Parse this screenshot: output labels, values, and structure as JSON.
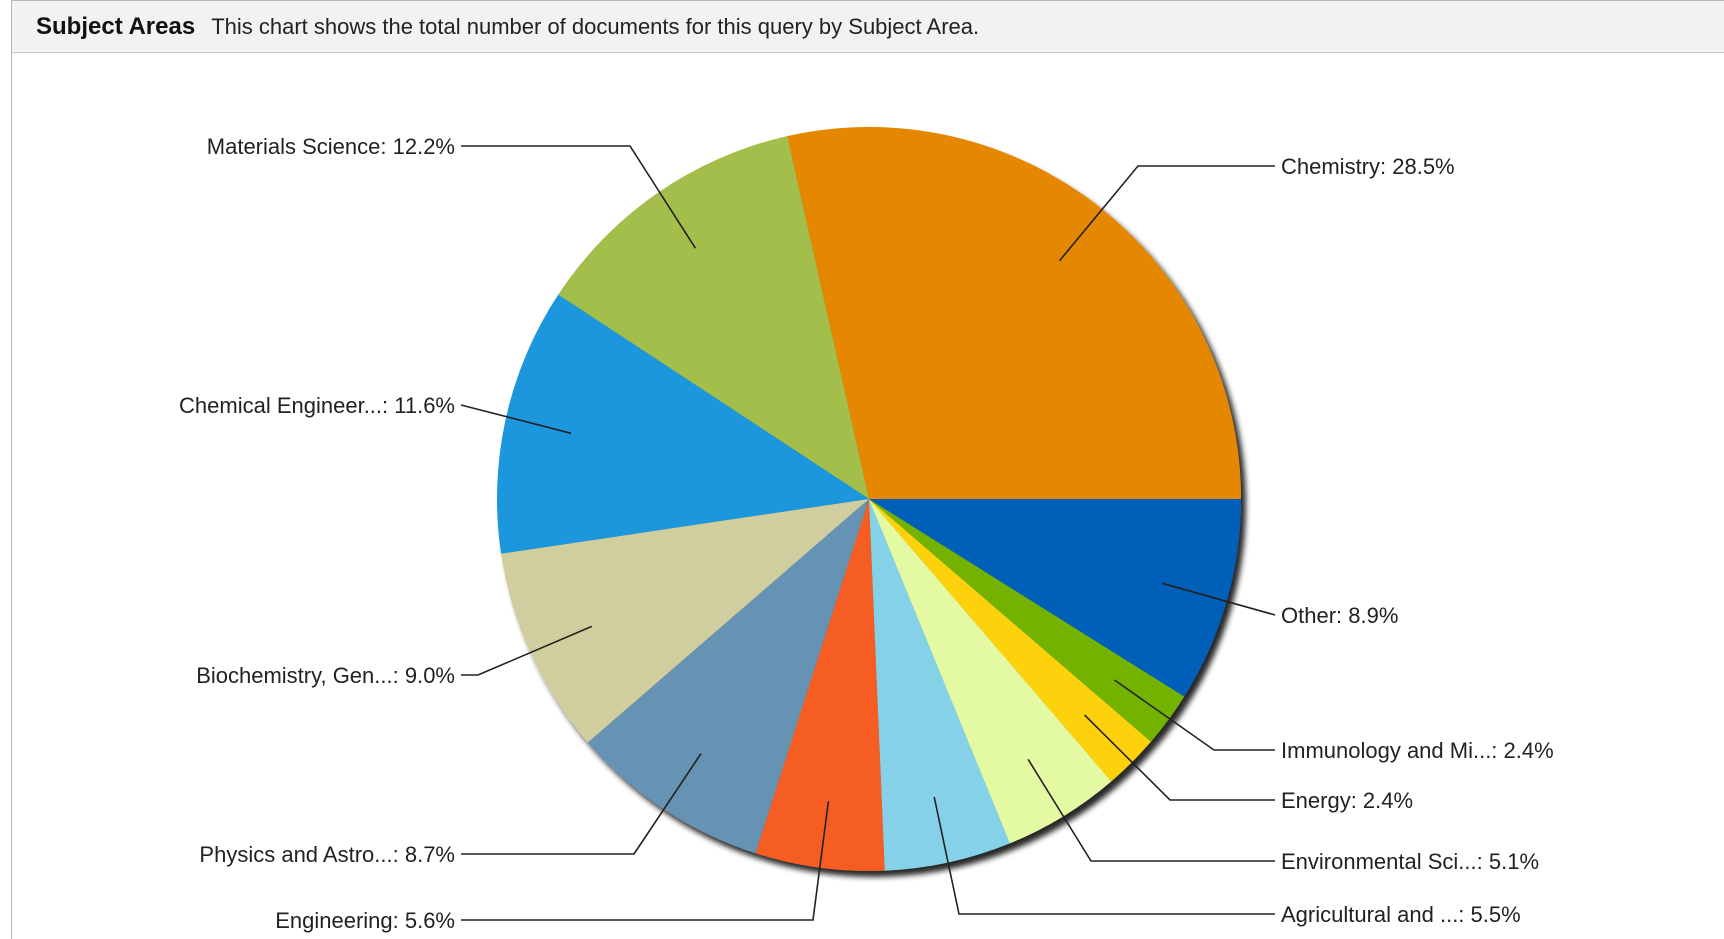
{
  "header": {
    "title": "Subject Areas",
    "description": "This chart shows the total number of documents for this query by Subject Area."
  },
  "chart_data": {
    "type": "pie",
    "title": "",
    "slices": [
      {
        "label": "Chemistry: 28.5%",
        "value": 28.5,
        "color": "#E58702"
      },
      {
        "label": "Materials Science: 12.2%",
        "value": 12.2,
        "color": "#A3BE4B"
      },
      {
        "label": "Chemical Engineer...: 11.6%",
        "value": 11.6,
        "color": "#1A96DC"
      },
      {
        "label": "Biochemistry, Gen...: 9.0%",
        "value": 9.0,
        "color": "#D0CD9E"
      },
      {
        "label": "Physics and Astro...: 8.7%",
        "value": 8.7,
        "color": "#6692B4"
      },
      {
        "label": "Engineering: 5.6%",
        "value": 5.6,
        "color": "#F65D21"
      },
      {
        "label": "Agricultural and ...: 5.5%",
        "value": 5.5,
        "color": "#85D2E8"
      },
      {
        "label": "Environmental Sci...: 5.1%",
        "value": 5.1,
        "color": "#E3FAA2"
      },
      {
        "label": "Energy: 2.4%",
        "value": 2.4,
        "color": "#FDD20C"
      },
      {
        "label": "Immunology and Mi...: 2.4%",
        "value": 2.4,
        "color": "#73B300"
      },
      {
        "label": "Other: 8.9%",
        "value": 8.9,
        "color": "#005FB9"
      }
    ]
  }
}
